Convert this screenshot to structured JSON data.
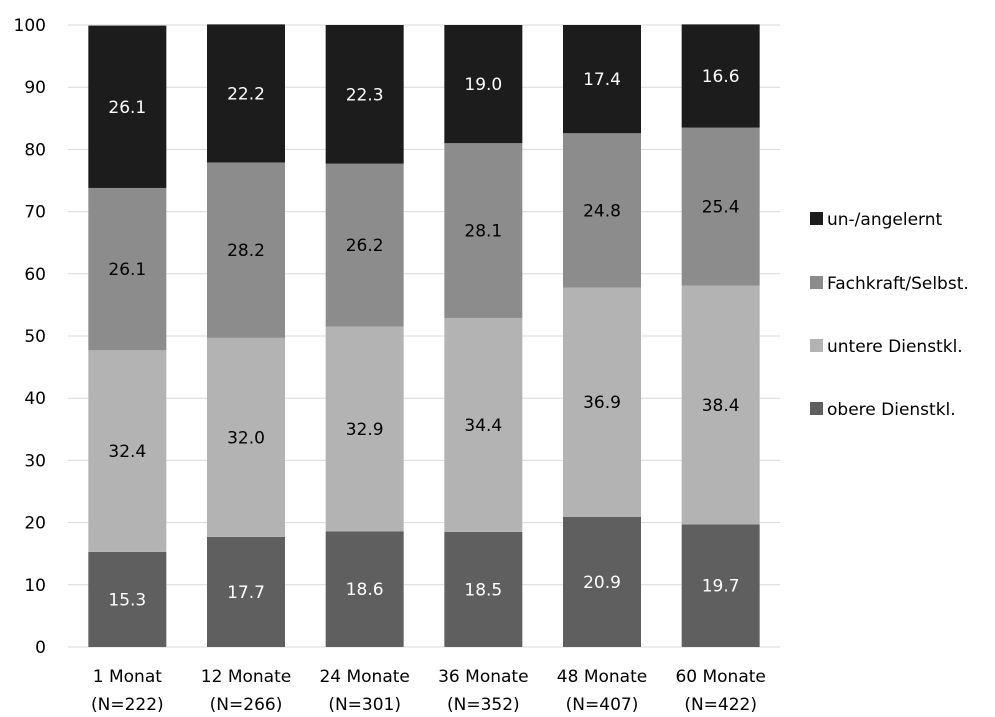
{
  "chart_data": {
    "type": "bar",
    "stacked": true,
    "title": "",
    "xlabel": "",
    "ylabel": "",
    "ylim": [
      0,
      100
    ],
    "yticks": [
      0,
      10,
      20,
      30,
      40,
      50,
      60,
      70,
      80,
      90,
      100
    ],
    "grid": true,
    "legend_position": "right",
    "categories": [
      [
        "1 Monat",
        "(N=222)"
      ],
      [
        "12 Monate",
        "(N=266)"
      ],
      [
        "24 Monate",
        "(N=301)"
      ],
      [
        "36 Monate",
        "(N=352)"
      ],
      [
        "48 Monate",
        "(N=407)"
      ],
      [
        "60 Monate",
        "(N=422)"
      ]
    ],
    "series": [
      {
        "name": "obere Dienstkl.",
        "color": "#5f5f5f",
        "label_color": "#ffffff",
        "values": [
          "15.3",
          "17.7",
          "18.6",
          "18.5",
          "20.9",
          "19.7"
        ]
      },
      {
        "name": "untere Dienstkl.",
        "color": "#b3b3b3",
        "label_color": "#000000",
        "values": [
          "32.4",
          "32.0",
          "32.9",
          "34.4",
          "36.9",
          "38.4"
        ]
      },
      {
        "name": "Fachkraft/Selbst.",
        "color": "#8c8c8c",
        "label_color": "#000000",
        "values": [
          "26.1",
          "28.2",
          "26.2",
          "28.1",
          "24.8",
          "25.4"
        ]
      },
      {
        "name": "un-/angelernt",
        "color": "#1c1c1c",
        "label_color": "#ffffff",
        "values": [
          "26.1",
          "22.2",
          "22.3",
          "19.0",
          "17.4",
          "16.6"
        ]
      }
    ]
  }
}
